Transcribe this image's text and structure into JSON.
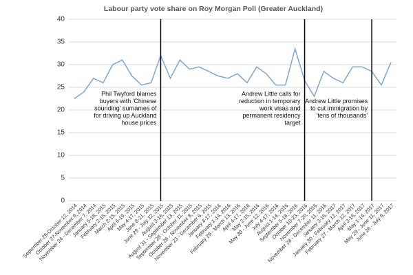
{
  "chart_data": {
    "type": "line",
    "title": "Labour party vote share on Roy Morgan Poll (Greater Auckland)",
    "categories": [
      "September 29-October 12, 2014",
      "October 27-November 9, 2014",
      "November 24 - December 7, 2014",
      "January 5-18, 2015",
      "February 2-15, 2015",
      "March 2-15, 2015",
      "April 6-19, 2015",
      "May 4-17, 2015",
      "June 8-21, 2015",
      "June 29 - July 12, 2015",
      "August 3-16, 2015",
      "August 31 - September 13, 2015",
      "September 28 - October 11, 2015",
      "October 26 - November 8, 2015",
      "November 23 - December 6, 2015",
      "January 4-17, 2016",
      "February 1-14, 2016",
      "February 29 - March 13, 2016",
      "April 4-17, 2016",
      "May 2-15, 2016",
      "May 30 - June 12, 2016",
      "July 4-17, 2016",
      "August 1-14, 2016",
      "September 5-18, 2016",
      "October 10-23, 2016",
      "November 7-20, 2016",
      "November 28 - December 11, 2016",
      "January 3-16, 2017",
      "January 30 - February 12, 2017",
      "February 27 - March 12, 2017",
      "April 3-16, 2017",
      "May 1-14, 2017",
      "May 29 - June 11, 2017",
      "June 26 - July 9, 2017"
    ],
    "series": [
      {
        "name": "Labour",
        "color": "#7ba7d3",
        "values": [
          22.5,
          24,
          27,
          26,
          30,
          31,
          27.5,
          25.5,
          26,
          32,
          27,
          31,
          29,
          29.5,
          28.5,
          27.5,
          27,
          28,
          26,
          29.5,
          28,
          25.5,
          25.5,
          33.5,
          26.5,
          23,
          28.5,
          27,
          26,
          29.5,
          29.5,
          28.5,
          25.5,
          30.5
        ]
      }
    ],
    "ylim": [
      0,
      40
    ],
    "yticks": [
      0,
      5,
      10,
      15,
      20,
      25,
      30,
      35,
      40
    ],
    "grid": true,
    "annotations": [
      {
        "x": "June 29 - July 12, 2015",
        "lines": [
          "Phil Twyford blames",
          "buyers with 'Chinese",
          "sounding' surnames of",
          "for driving up Auckland",
          "house prices"
        ]
      },
      {
        "x": "October 10-23, 2016",
        "lines": [
          "Andrew Little calls for",
          "reduction in temporary",
          "work visas and",
          "permanent residency",
          "target"
        ]
      },
      {
        "x": "May 1-14, 2017",
        "lines": [
          "Andrew Little promises",
          "to cut immigration by",
          "'tens of thousands'"
        ]
      }
    ]
  }
}
